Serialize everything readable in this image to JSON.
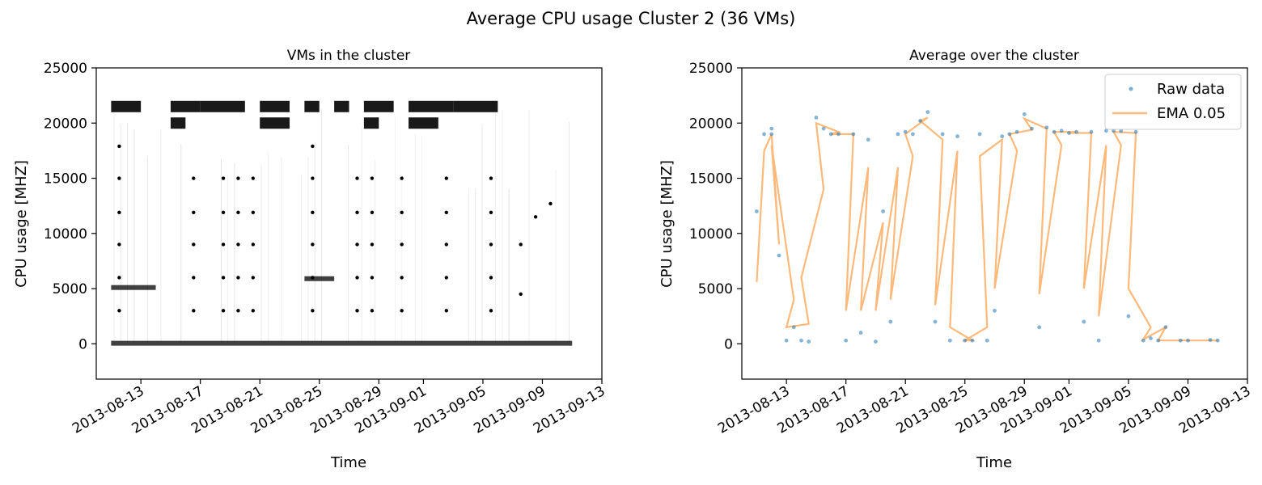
{
  "figure": {
    "title": "Average CPU usage Cluster 2 (36 VMs)"
  },
  "chart_data": [
    {
      "type": "scatter",
      "title": "VMs in the cluster",
      "xlabel": "Time",
      "ylabel": "CPU usage [MHZ]",
      "x_ticks": [
        "2013-08-13",
        "2013-08-17",
        "2013-08-21",
        "2013-08-25",
        "2013-08-29",
        "2013-09-01",
        "2013-09-05",
        "2013-09-09",
        "2013-09-13"
      ],
      "y_ticks": [
        0,
        5000,
        10000,
        15000,
        20000,
        25000
      ],
      "ylim": [
        -3200,
        25000
      ],
      "xlim": [
        "2013-08-10",
        "2013-09-13"
      ],
      "grid": false,
      "series": [
        {
          "color": "#000000",
          "bands": [
            {
              "y": 21500,
              "ranges": [
                [
                  "2013-08-11",
                  "2013-08-13"
                ],
                [
                  "2013-08-15",
                  "2013-08-17"
                ],
                [
                  "2013-08-17",
                  "2013-08-20"
                ],
                [
                  "2013-08-21",
                  "2013-08-23"
                ],
                [
                  "2013-08-24",
                  "2013-08-25"
                ],
                [
                  "2013-08-26",
                  "2013-08-27"
                ],
                [
                  "2013-08-28",
                  "2013-08-30"
                ],
                [
                  "2013-08-31",
                  "2013-09-03"
                ],
                [
                  "2013-09-03",
                  "2013-09-06"
                ]
              ]
            },
            {
              "y": 20000,
              "ranges": [
                [
                  "2013-08-15",
                  "2013-08-16"
                ],
                [
                  "2013-08-21",
                  "2013-08-23"
                ],
                [
                  "2013-08-28",
                  "2013-08-29"
                ],
                [
                  "2013-08-31",
                  "2013-09-02"
                ]
              ]
            },
            {
              "y": 5100,
              "ranges": [
                [
                  "2013-08-11",
                  "2013-08-14"
                ]
              ]
            },
            {
              "y": 5900,
              "ranges": [
                [
                  "2013-08-24",
                  "2013-08-26"
                ]
              ]
            },
            {
              "y": 50,
              "ranges": [
                [
                  "2013-08-11",
                  "2013-09-11"
                ]
              ]
            }
          ],
          "points": [
            {
              "x": "2013-08-11",
              "y": 17900
            },
            {
              "x": "2013-08-11",
              "y": 15000
            },
            {
              "x": "2013-08-11",
              "y": 11900
            },
            {
              "x": "2013-08-11",
              "y": 9000
            },
            {
              "x": "2013-08-11",
              "y": 6000
            },
            {
              "x": "2013-08-11",
              "y": 3000
            },
            {
              "x": "2013-08-16",
              "y": 15000
            },
            {
              "x": "2013-08-16",
              "y": 11900
            },
            {
              "x": "2013-08-16",
              "y": 9000
            },
            {
              "x": "2013-08-16",
              "y": 6000
            },
            {
              "x": "2013-08-16",
              "y": 3000
            },
            {
              "x": "2013-08-18",
              "y": 15000
            },
            {
              "x": "2013-08-18",
              "y": 11900
            },
            {
              "x": "2013-08-18",
              "y": 9000
            },
            {
              "x": "2013-08-18",
              "y": 6000
            },
            {
              "x": "2013-08-18",
              "y": 3000
            },
            {
              "x": "2013-08-19",
              "y": 15000
            },
            {
              "x": "2013-08-19",
              "y": 11900
            },
            {
              "x": "2013-08-19",
              "y": 9000
            },
            {
              "x": "2013-08-19",
              "y": 6000
            },
            {
              "x": "2013-08-19",
              "y": 3000
            },
            {
              "x": "2013-08-20",
              "y": 15000
            },
            {
              "x": "2013-08-20",
              "y": 11900
            },
            {
              "x": "2013-08-20",
              "y": 9000
            },
            {
              "x": "2013-08-20",
              "y": 6000
            },
            {
              "x": "2013-08-20",
              "y": 3000
            },
            {
              "x": "2013-08-24",
              "y": 17900
            },
            {
              "x": "2013-08-24",
              "y": 15000
            },
            {
              "x": "2013-08-24",
              "y": 11900
            },
            {
              "x": "2013-08-24",
              "y": 9000
            },
            {
              "x": "2013-08-24",
              "y": 6000
            },
            {
              "x": "2013-08-24",
              "y": 3000
            },
            {
              "x": "2013-08-27",
              "y": 15000
            },
            {
              "x": "2013-08-27",
              "y": 11900
            },
            {
              "x": "2013-08-27",
              "y": 9000
            },
            {
              "x": "2013-08-27",
              "y": 6000
            },
            {
              "x": "2013-08-27",
              "y": 3000
            },
            {
              "x": "2013-08-28",
              "y": 15000
            },
            {
              "x": "2013-08-28",
              "y": 11900
            },
            {
              "x": "2013-08-28",
              "y": 9000
            },
            {
              "x": "2013-08-28",
              "y": 6000
            },
            {
              "x": "2013-08-28",
              "y": 3000
            },
            {
              "x": "2013-08-30",
              "y": 15000
            },
            {
              "x": "2013-08-30",
              "y": 11900
            },
            {
              "x": "2013-08-30",
              "y": 9000
            },
            {
              "x": "2013-08-30",
              "y": 6000
            },
            {
              "x": "2013-08-30",
              "y": 3000
            },
            {
              "x": "2013-09-02",
              "y": 15000
            },
            {
              "x": "2013-09-02",
              "y": 11900
            },
            {
              "x": "2013-09-02",
              "y": 9000
            },
            {
              "x": "2013-09-02",
              "y": 6000
            },
            {
              "x": "2013-09-02",
              "y": 3000
            },
            {
              "x": "2013-09-05",
              "y": 15000
            },
            {
              "x": "2013-09-05",
              "y": 11900
            },
            {
              "x": "2013-09-05",
              "y": 9000
            },
            {
              "x": "2013-09-05",
              "y": 6000
            },
            {
              "x": "2013-09-05",
              "y": 3000
            },
            {
              "x": "2013-09-09",
              "y": 12700
            },
            {
              "x": "2013-09-08",
              "y": 11500
            },
            {
              "x": "2013-09-07",
              "y": 9000
            },
            {
              "x": "2013-09-07",
              "y": 4500
            }
          ]
        }
      ]
    },
    {
      "type": "line",
      "title": "Average over the cluster",
      "xlabel": "Time",
      "ylabel": "CPU usage [MHZ]",
      "x_ticks": [
        "2013-08-13",
        "2013-08-17",
        "2013-08-21",
        "2013-08-25",
        "2013-08-29",
        "2013-09-01",
        "2013-09-05",
        "2013-09-09",
        "2013-09-13"
      ],
      "y_ticks": [
        0,
        5000,
        10000,
        15000,
        20000,
        25000
      ],
      "ylim": [
        -3200,
        25000
      ],
      "xlim": [
        "2013-08-10",
        "2013-09-13"
      ],
      "grid": false,
      "legend": "top-right",
      "series": [
        {
          "name": "Raw data",
          "style": "scatter",
          "color": "#1f77b4",
          "x": [
            "2013-08-11",
            "2013-08-11",
            "2013-08-12",
            "2013-08-12",
            "2013-08-12",
            "2013-08-13",
            "2013-08-13",
            "2013-08-14",
            "2013-08-14",
            "2013-08-15",
            "2013-08-15",
            "2013-08-16",
            "2013-08-16",
            "2013-08-17",
            "2013-08-17",
            "2013-08-18",
            "2013-08-18",
            "2013-08-19",
            "2013-08-19",
            "2013-08-20",
            "2013-08-20",
            "2013-08-21",
            "2013-08-21",
            "2013-08-22",
            "2013-08-22",
            "2013-08-23",
            "2013-08-23",
            "2013-08-24",
            "2013-08-24",
            "2013-08-25",
            "2013-08-25",
            "2013-08-26",
            "2013-08-26",
            "2013-08-27",
            "2013-08-27",
            "2013-08-28",
            "2013-08-28",
            "2013-08-29",
            "2013-08-29",
            "2013-08-30",
            "2013-08-30",
            "2013-08-31",
            "2013-08-31",
            "2013-09-01",
            "2013-09-01",
            "2013-09-02",
            "2013-09-02",
            "2013-09-03",
            "2013-09-03",
            "2013-09-04",
            "2013-09-04",
            "2013-09-05",
            "2013-09-05",
            "2013-09-06",
            "2013-09-06",
            "2013-09-07",
            "2013-09-07",
            "2013-09-08",
            "2013-09-09",
            "2013-09-10",
            "2013-09-11"
          ],
          "y": [
            12000,
            19000,
            19500,
            8000,
            19000,
            1500,
            300,
            200,
            300,
            19500,
            20500,
            19000,
            19000,
            19000,
            300,
            18500,
            1000,
            12000,
            200,
            19000,
            2000,
            19000,
            19200,
            21000,
            20200,
            19000,
            2000,
            18800,
            300,
            300,
            300,
            300,
            19000,
            18800,
            3000,
            19200,
            19000,
            19500,
            20800,
            19600,
            1500,
            19300,
            19200,
            19200,
            19100,
            19200,
            2000,
            19300,
            300,
            19300,
            19300,
            19200,
            2500,
            500,
            300,
            1500,
            300,
            300,
            300,
            350,
            300
          ]
        },
        {
          "name": "EMA 0.05",
          "style": "line",
          "color": "#ff7f0e",
          "x": [
            "2013-08-11",
            "2013-08-11",
            "2013-08-12",
            "2013-08-12",
            "2013-08-12",
            "2013-08-13",
            "2013-08-13",
            "2013-08-14",
            "2013-08-14",
            "2013-08-15",
            "2013-08-15",
            "2013-08-16",
            "2013-08-16",
            "2013-08-17",
            "2013-08-17",
            "2013-08-18",
            "2013-08-18",
            "2013-08-19",
            "2013-08-19",
            "2013-08-20",
            "2013-08-20",
            "2013-08-21",
            "2013-08-21",
            "2013-08-22",
            "2013-08-22",
            "2013-08-23",
            "2013-08-23",
            "2013-08-24",
            "2013-08-24",
            "2013-08-25",
            "2013-08-25",
            "2013-08-26",
            "2013-08-26",
            "2013-08-27",
            "2013-08-27",
            "2013-08-28",
            "2013-08-28",
            "2013-08-29",
            "2013-08-29",
            "2013-08-30",
            "2013-08-30",
            "2013-08-31",
            "2013-08-31",
            "2013-09-01",
            "2013-09-01",
            "2013-09-02",
            "2013-09-02",
            "2013-09-03",
            "2013-09-03",
            "2013-09-04",
            "2013-09-04",
            "2013-09-05",
            "2013-09-05",
            "2013-09-06",
            "2013-09-06",
            "2013-09-07",
            "2013-09-07",
            "2013-09-08",
            "2013-09-09",
            "2013-09-10",
            "2013-09-11"
          ],
          "y": [
            5600,
            17500,
            19000,
            9000,
            18000,
            4000,
            1500,
            1800,
            6000,
            14000,
            20000,
            19200,
            19000,
            19000,
            3000,
            16000,
            3000,
            11000,
            3000,
            16000,
            4000,
            17000,
            19000,
            20500,
            20200,
            18500,
            3500,
            17500,
            1500,
            300,
            300,
            1500,
            17000,
            18500,
            5000,
            17500,
            19000,
            19400,
            20400,
            19500,
            4500,
            18000,
            19200,
            19200,
            19100,
            19100,
            5000,
            18000,
            2500,
            18000,
            19200,
            19100,
            5000,
            1500,
            400,
            1500,
            300,
            300,
            300,
            300,
            300
          ]
        }
      ]
    }
  ]
}
